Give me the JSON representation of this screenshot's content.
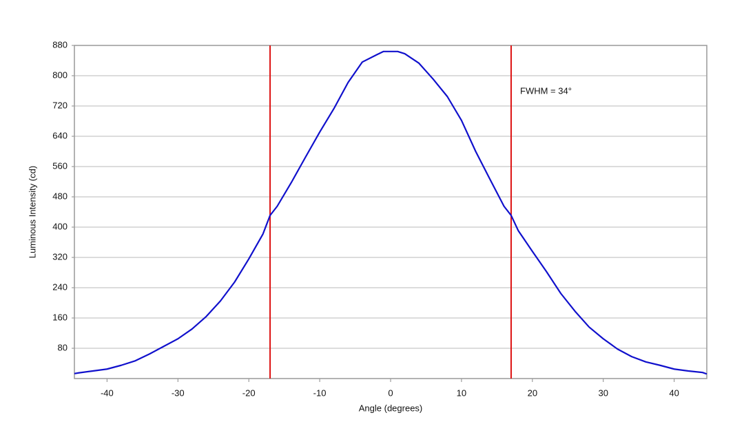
{
  "chart_data": {
    "type": "line",
    "x_label": "Angle (degrees)",
    "y_label": "Luminous Intensity (cd)",
    "annotation": "FWHM = 34°",
    "x": [
      -44.6,
      -44,
      -42,
      -40,
      -38,
      -36,
      -34,
      -32,
      -30,
      -28,
      -26,
      -24,
      -22,
      -20,
      -18,
      -17,
      -16,
      -14,
      -12,
      -10,
      -8,
      -6,
      -4,
      -2,
      -1,
      0,
      1,
      2,
      4,
      6,
      8,
      10,
      12,
      14,
      16,
      17,
      18,
      20,
      22,
      24,
      26,
      28,
      30,
      32,
      34,
      36,
      38,
      40,
      42,
      44,
      44.6
    ],
    "series": [
      {
        "name": "Intensity",
        "color": "#1010cc",
        "values": [
          13,
          15,
          20,
          25,
          35,
          47,
          65,
          85,
          105,
          131,
          164,
          205,
          255,
          316,
          382,
          431,
          455,
          518,
          585,
          651,
          713,
          782,
          836,
          855,
          864,
          864,
          864,
          858,
          833,
          791,
          745,
          682,
          600,
          527,
          455,
          431,
          391,
          336,
          282,
          225,
          178,
          136,
          105,
          78,
          58,
          44,
          35,
          25,
          20,
          16,
          12
        ]
      }
    ],
    "vlines": [
      -17,
      17
    ],
    "vline_color": "#dd1111",
    "xlim": [
      -44.6,
      44.6
    ],
    "ylim": [
      0,
      880
    ],
    "xticks": [
      -40,
      -30,
      -20,
      -10,
      0,
      10,
      20,
      30,
      40
    ],
    "yticks": [
      80,
      160,
      240,
      320,
      400,
      480,
      560,
      640,
      720,
      800,
      880
    ],
    "grid": true
  }
}
